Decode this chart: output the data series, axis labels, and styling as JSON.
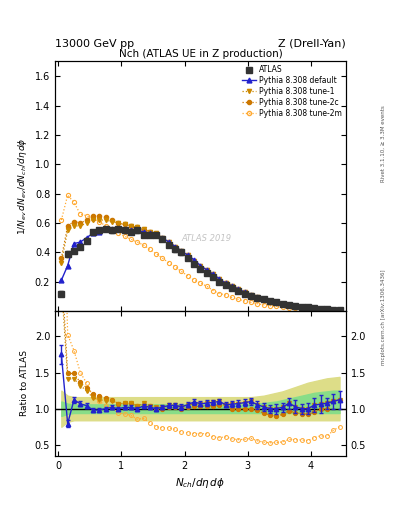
{
  "title_top": "13000 GeV pp",
  "title_right": "Z (Drell-Yan)",
  "plot_title": "Nch (ATLAS UE in Z production)",
  "xlabel": "$N_{ch}/d\\eta\\,d\\phi$",
  "ylabel_main": "$1/N_{ev}\\,dN_{ev}/dN_{ch}/d\\eta\\,d\\phi$",
  "ylabel_ratio": "Ratio to ATLAS",
  "right_label_top": "Rivet 3.1.10, ≥ 3.3M events",
  "right_label_bottom": "mcplots.cern.ch [arXiv:1306.3436]",
  "watermark": "ATLAS 2019",
  "xlim": [
    -0.05,
    4.55
  ],
  "ylim_main": [
    0.0,
    1.7
  ],
  "ylim_ratio": [
    0.35,
    2.35
  ],
  "xvals": [
    0.05,
    0.15,
    0.25,
    0.35,
    0.45,
    0.55,
    0.65,
    0.75,
    0.85,
    0.95,
    1.05,
    1.15,
    1.25,
    1.35,
    1.45,
    1.55,
    1.65,
    1.75,
    1.85,
    1.95,
    2.05,
    2.15,
    2.25,
    2.35,
    2.45,
    2.55,
    2.65,
    2.75,
    2.85,
    2.95,
    3.05,
    3.15,
    3.25,
    3.35,
    3.45,
    3.55,
    3.65,
    3.75,
    3.85,
    3.95,
    4.05,
    4.15,
    4.25,
    4.35,
    4.45
  ],
  "atlas_y": [
    0.12,
    0.39,
    0.41,
    0.44,
    0.48,
    0.54,
    0.55,
    0.56,
    0.55,
    0.56,
    0.55,
    0.54,
    0.55,
    0.52,
    0.52,
    0.52,
    0.49,
    0.45,
    0.42,
    0.4,
    0.36,
    0.32,
    0.29,
    0.26,
    0.23,
    0.2,
    0.18,
    0.16,
    0.14,
    0.12,
    0.1,
    0.09,
    0.08,
    0.07,
    0.06,
    0.05,
    0.04,
    0.035,
    0.03,
    0.025,
    0.02,
    0.016,
    0.013,
    0.01,
    0.008
  ],
  "atlas_yerr": [
    0.015,
    0.02,
    0.015,
    0.015,
    0.015,
    0.015,
    0.015,
    0.015,
    0.015,
    0.015,
    0.015,
    0.015,
    0.015,
    0.015,
    0.015,
    0.015,
    0.015,
    0.015,
    0.015,
    0.015,
    0.013,
    0.012,
    0.011,
    0.01,
    0.009,
    0.008,
    0.007,
    0.007,
    0.006,
    0.006,
    0.005,
    0.005,
    0.004,
    0.004,
    0.004,
    0.003,
    0.003,
    0.003,
    0.002,
    0.002,
    0.002,
    0.002,
    0.001,
    0.001,
    0.001
  ],
  "default_y": [
    0.21,
    0.31,
    0.46,
    0.47,
    0.5,
    0.53,
    0.54,
    0.56,
    0.56,
    0.56,
    0.56,
    0.55,
    0.55,
    0.54,
    0.53,
    0.52,
    0.5,
    0.47,
    0.44,
    0.41,
    0.38,
    0.35,
    0.31,
    0.28,
    0.25,
    0.22,
    0.19,
    0.17,
    0.15,
    0.13,
    0.11,
    0.095,
    0.082,
    0.07,
    0.06,
    0.051,
    0.043,
    0.036,
    0.03,
    0.025,
    0.021,
    0.017,
    0.014,
    0.011,
    0.009
  ],
  "tune1_y": [
    0.33,
    0.55,
    0.58,
    0.58,
    0.6,
    0.62,
    0.62,
    0.62,
    0.61,
    0.6,
    0.59,
    0.58,
    0.57,
    0.56,
    0.54,
    0.53,
    0.5,
    0.47,
    0.44,
    0.41,
    0.38,
    0.34,
    0.31,
    0.28,
    0.25,
    0.22,
    0.19,
    0.17,
    0.15,
    0.13,
    0.11,
    0.095,
    0.082,
    0.07,
    0.06,
    0.051,
    0.043,
    0.036,
    0.03,
    0.025,
    0.021,
    0.017,
    0.014,
    0.011,
    0.009
  ],
  "tune2c_y": [
    0.36,
    0.58,
    0.61,
    0.6,
    0.62,
    0.65,
    0.65,
    0.64,
    0.62,
    0.6,
    0.59,
    0.58,
    0.57,
    0.55,
    0.54,
    0.52,
    0.49,
    0.46,
    0.43,
    0.4,
    0.37,
    0.33,
    0.3,
    0.27,
    0.24,
    0.21,
    0.19,
    0.16,
    0.14,
    0.12,
    0.1,
    0.088,
    0.075,
    0.064,
    0.054,
    0.046,
    0.039,
    0.033,
    0.028,
    0.023,
    0.019,
    0.016,
    0.013,
    0.011,
    0.009
  ],
  "tune2m_y": [
    0.62,
    0.79,
    0.74,
    0.66,
    0.65,
    0.63,
    0.61,
    0.58,
    0.56,
    0.53,
    0.51,
    0.49,
    0.47,
    0.45,
    0.42,
    0.39,
    0.36,
    0.33,
    0.3,
    0.27,
    0.24,
    0.21,
    0.19,
    0.17,
    0.14,
    0.12,
    0.11,
    0.093,
    0.08,
    0.069,
    0.059,
    0.05,
    0.043,
    0.037,
    0.032,
    0.027,
    0.023,
    0.02,
    0.017,
    0.014,
    0.012,
    0.01,
    0.008,
    0.007,
    0.006
  ],
  "band_inner_lo": [
    0.9,
    0.93,
    0.94,
    0.94,
    0.94,
    0.94,
    0.94,
    0.94,
    0.94,
    0.94,
    0.94,
    0.94,
    0.94,
    0.94,
    0.94,
    0.94,
    0.94,
    0.94,
    0.94,
    0.94,
    0.94,
    0.94,
    0.94,
    0.94,
    0.94,
    0.94,
    0.94,
    0.94,
    0.94,
    0.94,
    0.94,
    0.94,
    0.94,
    0.94,
    0.94,
    0.94,
    0.94,
    0.94,
    0.94,
    0.94,
    0.94,
    0.94,
    0.94,
    0.94,
    0.94
  ],
  "band_inner_hi": [
    1.1,
    1.07,
    1.06,
    1.06,
    1.06,
    1.06,
    1.06,
    1.06,
    1.06,
    1.06,
    1.06,
    1.06,
    1.06,
    1.06,
    1.06,
    1.06,
    1.06,
    1.06,
    1.06,
    1.06,
    1.06,
    1.06,
    1.06,
    1.06,
    1.06,
    1.06,
    1.06,
    1.06,
    1.06,
    1.06,
    1.06,
    1.07,
    1.08,
    1.09,
    1.1,
    1.12,
    1.14,
    1.16,
    1.18,
    1.2,
    1.22,
    1.23,
    1.24,
    1.25,
    1.25
  ],
  "band_outer_lo": [
    0.75,
    0.82,
    0.84,
    0.84,
    0.84,
    0.84,
    0.84,
    0.84,
    0.84,
    0.84,
    0.84,
    0.84,
    0.84,
    0.84,
    0.84,
    0.84,
    0.84,
    0.84,
    0.84,
    0.84,
    0.84,
    0.84,
    0.84,
    0.84,
    0.84,
    0.84,
    0.84,
    0.84,
    0.84,
    0.84,
    0.84,
    0.84,
    0.84,
    0.84,
    0.84,
    0.84,
    0.84,
    0.84,
    0.84,
    0.84,
    0.84,
    0.84,
    0.84,
    0.84,
    0.84
  ],
  "band_outer_hi": [
    1.25,
    1.18,
    1.16,
    1.16,
    1.16,
    1.16,
    1.16,
    1.16,
    1.16,
    1.16,
    1.16,
    1.16,
    1.16,
    1.16,
    1.16,
    1.16,
    1.16,
    1.16,
    1.16,
    1.16,
    1.16,
    1.16,
    1.16,
    1.16,
    1.16,
    1.16,
    1.16,
    1.16,
    1.16,
    1.16,
    1.16,
    1.17,
    1.18,
    1.2,
    1.22,
    1.24,
    1.27,
    1.3,
    1.33,
    1.36,
    1.38,
    1.4,
    1.42,
    1.43,
    1.44
  ],
  "color_atlas": "#333333",
  "color_default": "#2222cc",
  "color_tune1": "#cc8800",
  "color_tune2c": "#cc7700",
  "color_tune2m": "#ffaa33",
  "color_band_inner": "#88dd88",
  "color_band_outer": "#dddd88",
  "legend_labels": [
    "ATLAS",
    "Pythia 8.308 default",
    "Pythia 8.308 tune-1",
    "Pythia 8.308 tune-2c",
    "Pythia 8.308 tune-2m"
  ],
  "yticks_main": [
    0.2,
    0.4,
    0.6,
    0.8,
    1.0,
    1.2,
    1.4,
    1.6
  ],
  "yticks_ratio": [
    0.5,
    1.0,
    1.5,
    2.0
  ],
  "xticks": [
    0,
    1,
    2,
    3,
    4
  ]
}
